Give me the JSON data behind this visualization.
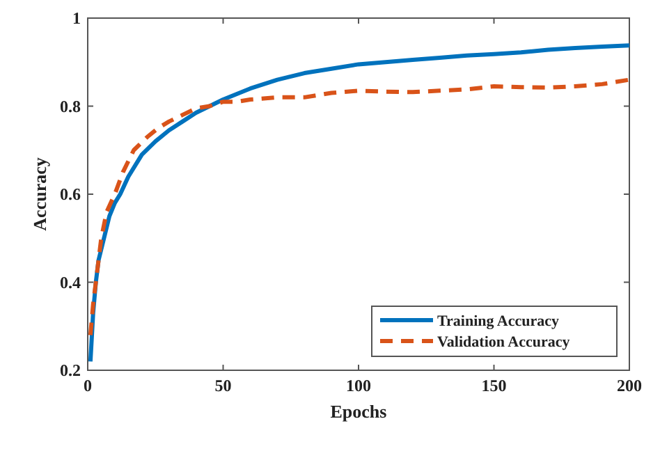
{
  "chart_data": {
    "type": "line",
    "xlabel": "Epochs",
    "ylabel": "Accuracy",
    "xlim": [
      0,
      200
    ],
    "ylim": [
      0.2,
      1
    ],
    "xticks": [
      0,
      50,
      100,
      150,
      200
    ],
    "yticks": [
      0.2,
      0.4,
      0.6,
      0.8,
      1
    ],
    "grid": false,
    "legend": "bottom right",
    "series": [
      {
        "name": "Training Accuracy",
        "color": "#0072bd",
        "line_style": "solid",
        "x": [
          1,
          2,
          3,
          4,
          6,
          8,
          10,
          12,
          15,
          20,
          25,
          30,
          35,
          40,
          50,
          60,
          70,
          80,
          90,
          100,
          110,
          120,
          130,
          140,
          150,
          160,
          170,
          180,
          190,
          200
        ],
        "values": [
          0.22,
          0.33,
          0.4,
          0.45,
          0.5,
          0.55,
          0.58,
          0.6,
          0.64,
          0.69,
          0.72,
          0.745,
          0.765,
          0.785,
          0.815,
          0.84,
          0.86,
          0.875,
          0.885,
          0.895,
          0.9,
          0.905,
          0.91,
          0.915,
          0.918,
          0.922,
          0.928,
          0.932,
          0.935,
          0.938
        ]
      },
      {
        "name": "Validation Accuracy",
        "color": "#d95319",
        "line_style": "dashed",
        "x": [
          1,
          2,
          3,
          5,
          7,
          10,
          13,
          17,
          22,
          26,
          30,
          35,
          40,
          45,
          50,
          55,
          60,
          70,
          80,
          90,
          100,
          110,
          120,
          130,
          140,
          150,
          160,
          170,
          180,
          190,
          200
        ],
        "values": [
          0.28,
          0.35,
          0.4,
          0.5,
          0.56,
          0.6,
          0.65,
          0.7,
          0.73,
          0.75,
          0.765,
          0.78,
          0.795,
          0.8,
          0.81,
          0.81,
          0.815,
          0.82,
          0.82,
          0.83,
          0.835,
          0.833,
          0.832,
          0.835,
          0.838,
          0.845,
          0.843,
          0.842,
          0.845,
          0.85,
          0.86
        ]
      }
    ]
  }
}
